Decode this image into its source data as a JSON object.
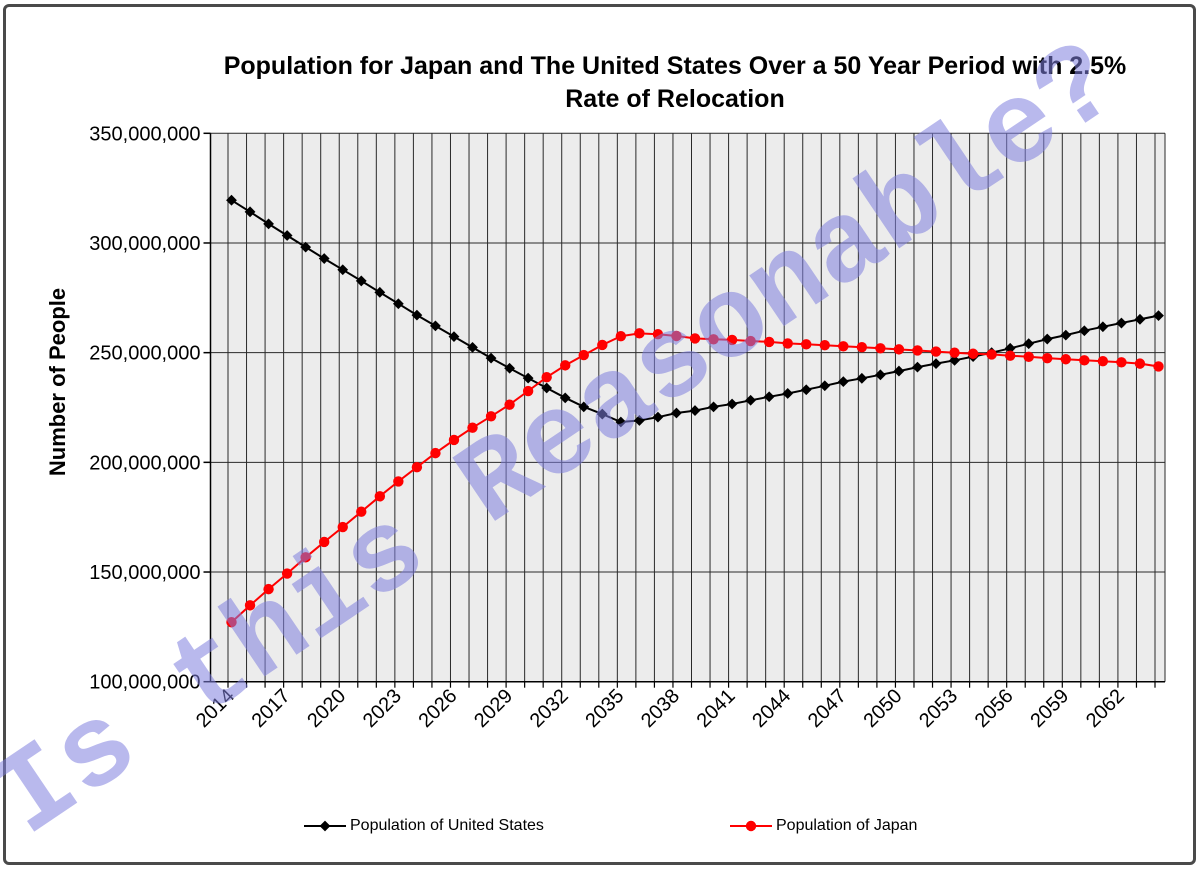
{
  "figure": {
    "title": "Population for Japan and The United States Over a 50 Year Period with 2.5% Rate of Relocation",
    "watermark": "Is this Reasonable?"
  },
  "y_axis": {
    "label": "Number of People",
    "ticks": [
      {
        "label": "350,000,000",
        "millions": 350
      },
      {
        "label": "300,000,000",
        "millions": 300
      },
      {
        "label": "250,000,000",
        "millions": 250
      },
      {
        "label": "200,000,000",
        "millions": 200
      },
      {
        "label": "150,000,000",
        "millions": 150
      },
      {
        "label": "100,000,000",
        "millions": 100
      }
    ]
  },
  "x_axis": {
    "ticks": [
      {
        "label": "2014",
        "year": 2014
      },
      {
        "label": "2017",
        "year": 2017
      },
      {
        "label": "2020",
        "year": 2020
      },
      {
        "label": "2023",
        "year": 2023
      },
      {
        "label": "2026",
        "year": 2026
      },
      {
        "label": "2029",
        "year": 2029
      },
      {
        "label": "2032",
        "year": 2032
      },
      {
        "label": "2035",
        "year": 2035
      },
      {
        "label": "2038",
        "year": 2038
      },
      {
        "label": "2041",
        "year": 2041
      },
      {
        "label": "2044",
        "year": 2044
      },
      {
        "label": "2047",
        "year": 2047
      },
      {
        "label": "2050",
        "year": 2050
      },
      {
        "label": "2053",
        "year": 2053
      },
      {
        "label": "2056",
        "year": 2056
      },
      {
        "label": "2059",
        "year": 2059
      },
      {
        "label": "2062",
        "year": 2062
      }
    ]
  },
  "legend": [
    {
      "label": "Population of United States",
      "color": "#000000",
      "marker": "diamond"
    },
    {
      "label": "Population of Japan",
      "color": "#FF0000",
      "marker": "circle"
    }
  ],
  "chart_data": {
    "type": "line",
    "title": "Population for Japan and The United States Over a 50 Year Period with 2.5% Rate of Relocation",
    "xlabel": "",
    "ylabel": "Number of People",
    "unit": "people (values in millions)",
    "ylim_millions": [
      100,
      350
    ],
    "y_tick_step_millions": 50,
    "x_tick_label_step_years": 3,
    "grid": {
      "vertical": "every year",
      "horizontal": "every 50,000,000"
    },
    "plot_background": "#ECECEC",
    "gridline_color": "#2a2a2a",
    "watermark_color": "#8080DF",
    "legend_position": "bottom",
    "x_years": [
      2014,
      2015,
      2016,
      2017,
      2018,
      2019,
      2020,
      2021,
      2022,
      2023,
      2024,
      2025,
      2026,
      2027,
      2028,
      2029,
      2030,
      2031,
      2032,
      2033,
      2034,
      2035,
      2036,
      2037,
      2038,
      2039,
      2040,
      2041,
      2042,
      2043,
      2044,
      2045,
      2046,
      2047,
      2048,
      2049,
      2050,
      2051,
      2052,
      2053,
      2054,
      2055,
      2056,
      2057,
      2058,
      2059,
      2060,
      2061,
      2062,
      2063,
      2064
    ],
    "series": [
      {
        "name": "Population of United States",
        "color": "#000000",
        "marker": "diamond",
        "values_millions": [
          319.5,
          314.2,
          308.7,
          303.4,
          298.1,
          292.9,
          287.8,
          282.7,
          277.5,
          272.3,
          267.1,
          262.2,
          257.3,
          252.4,
          247.5,
          242.9,
          238.4,
          233.9,
          229.4,
          225.3,
          222.0,
          218.4,
          219.1,
          220.6,
          222.5,
          223.6,
          225.3,
          226.6,
          228.3,
          229.9,
          231.4,
          233.1,
          234.9,
          236.8,
          238.3,
          239.9,
          241.6,
          243.4,
          245.0,
          246.5,
          248.2,
          250.0,
          252.0,
          254.1,
          256.2,
          258.0,
          260.0,
          261.8,
          263.5,
          265.2,
          266.9
        ]
      },
      {
        "name": "Population of Japan",
        "color": "#FF0000",
        "marker": "circle",
        "values_millions": [
          127.1,
          134.8,
          142.2,
          149.3,
          156.7,
          163.7,
          170.5,
          177.5,
          184.5,
          191.3,
          197.8,
          204.2,
          210.2,
          215.8,
          221.0,
          226.3,
          232.5,
          238.8,
          244.2,
          248.9,
          253.5,
          257.5,
          258.8,
          258.4,
          257.6,
          256.5,
          256.1,
          255.8,
          255.3,
          254.9,
          254.2,
          253.8,
          253.4,
          252.9,
          252.5,
          252.0,
          251.5,
          251.0,
          250.5,
          250.0,
          249.5,
          249.2,
          248.6,
          248.1,
          247.5,
          247.0,
          246.5,
          246.1,
          245.6,
          245.0,
          243.7
        ]
      }
    ]
  }
}
